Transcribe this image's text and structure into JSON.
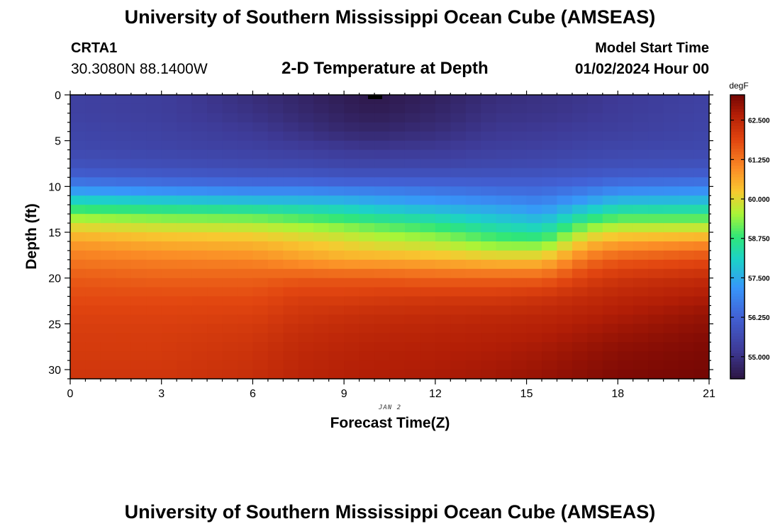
{
  "header": {
    "title": "University of Southern Mississippi Ocean Cube (AMSEAS)",
    "station_id": "CRTA1",
    "coordinates": "30.3080N  88.1400W",
    "plot_title": "2-D Temperature at Depth",
    "model_start_label": "Model Start Time",
    "model_start_value": "01/02/2024 Hour 00"
  },
  "footer": {
    "title": "University of Southern Mississippi Ocean Cube (AMSEAS)"
  },
  "chart_data": {
    "type": "heatmap",
    "title": "2-D Temperature at Depth",
    "xlabel": "Forecast Time(Z)",
    "ylabel": "Depth (ft)",
    "date_label": "JAN 2",
    "x_ticks": [
      0,
      3,
      6,
      9,
      12,
      15,
      18,
      21
    ],
    "y_ticks": [
      0,
      5,
      10,
      15,
      20,
      25,
      30
    ],
    "xlim": [
      0,
      21
    ],
    "ylim": [
      0,
      31
    ],
    "units": "degF",
    "colorbar": {
      "label": "degF",
      "ticks": [
        55.0,
        56.25,
        57.5,
        58.75,
        60.0,
        61.25,
        62.5
      ],
      "tick_labels": [
        "55.000",
        "56.250",
        "57.500",
        "58.750",
        "60.000",
        "61.250",
        "62.500"
      ],
      "range": [
        54.3,
        63.3
      ]
    },
    "x_hours": [
      0,
      3,
      6,
      7.5,
      9,
      10,
      12,
      14,
      15.5,
      17,
      18,
      21
    ],
    "depth_ft": [
      0,
      2,
      4,
      6,
      8,
      9,
      10,
      11,
      12,
      13,
      14,
      15,
      16,
      17,
      18,
      19,
      20,
      22,
      24,
      26,
      28,
      30,
      31
    ],
    "temperature_profiles": [
      {
        "hour": 0,
        "values": [
          55.4,
          55.4,
          55.5,
          55.6,
          55.9,
          56.3,
          56.9,
          57.7,
          58.5,
          59.2,
          59.8,
          60.3,
          60.7,
          61.0,
          61.2,
          61.4,
          61.6,
          61.8,
          61.95,
          62.05,
          62.1,
          62.15,
          62.2
        ]
      },
      {
        "hour": 3,
        "values": [
          55.3,
          55.3,
          55.4,
          55.5,
          55.8,
          56.2,
          56.7,
          57.5,
          58.3,
          59.0,
          59.6,
          60.1,
          60.5,
          60.8,
          61.1,
          61.3,
          61.5,
          61.8,
          61.95,
          62.05,
          62.1,
          62.15,
          62.2
        ]
      },
      {
        "hour": 6,
        "values": [
          54.9,
          55.0,
          55.2,
          55.4,
          55.7,
          56.1,
          56.6,
          57.3,
          58.1,
          58.9,
          59.5,
          60.0,
          60.4,
          60.7,
          61.0,
          61.3,
          61.5,
          61.8,
          62.0,
          62.15,
          62.25,
          62.3,
          62.35
        ]
      },
      {
        "hour": 7.5,
        "values": [
          54.7,
          54.8,
          55.0,
          55.3,
          55.7,
          56.1,
          56.6,
          57.3,
          58.0,
          58.7,
          59.3,
          59.8,
          60.2,
          60.5,
          60.8,
          61.2,
          61.6,
          62.0,
          62.2,
          62.35,
          62.45,
          62.5,
          62.55
        ]
      },
      {
        "hour": 9,
        "values": [
          54.5,
          54.6,
          54.8,
          55.2,
          55.6,
          56.0,
          56.5,
          57.2,
          57.9,
          58.5,
          59.1,
          59.6,
          60.0,
          60.3,
          60.6,
          61.1,
          61.6,
          62.0,
          62.3,
          62.45,
          62.55,
          62.6,
          62.65
        ]
      },
      {
        "hour": 10,
        "values": [
          54.4,
          54.5,
          54.75,
          55.15,
          55.6,
          56.0,
          56.5,
          57.1,
          57.7,
          58.3,
          58.9,
          59.4,
          59.8,
          60.2,
          60.6,
          61.1,
          61.6,
          62.05,
          62.35,
          62.5,
          62.6,
          62.65,
          62.7
        ]
      },
      {
        "hour": 12,
        "values": [
          54.6,
          54.7,
          54.9,
          55.2,
          55.6,
          56.0,
          56.4,
          56.9,
          57.4,
          58.0,
          58.6,
          59.1,
          59.6,
          60.0,
          60.5,
          61.0,
          61.5,
          62.1,
          62.4,
          62.55,
          62.65,
          62.7,
          62.75
        ]
      },
      {
        "hour": 14,
        "values": [
          54.9,
          55.0,
          55.15,
          55.35,
          55.65,
          56.0,
          56.3,
          56.7,
          57.2,
          57.7,
          58.1,
          58.6,
          59.1,
          59.7,
          60.3,
          60.9,
          61.5,
          62.1,
          62.45,
          62.6,
          62.7,
          62.8,
          62.85
        ]
      },
      {
        "hour": 15.5,
        "values": [
          55.0,
          55.05,
          55.2,
          55.4,
          55.7,
          56.0,
          56.3,
          56.6,
          57.0,
          57.4,
          57.9,
          58.4,
          59.0,
          59.7,
          60.3,
          60.9,
          61.5,
          62.2,
          62.5,
          62.65,
          62.8,
          62.9,
          62.95
        ]
      },
      {
        "hour": 17,
        "values": [
          55.1,
          55.15,
          55.3,
          55.5,
          55.8,
          56.1,
          56.5,
          57.0,
          57.6,
          58.3,
          59.0,
          59.7,
          60.3,
          60.8,
          61.3,
          61.7,
          62.0,
          62.4,
          62.6,
          62.8,
          62.95,
          63.05,
          63.1
        ]
      },
      {
        "hour": 18,
        "values": [
          55.2,
          55.25,
          55.35,
          55.55,
          55.85,
          56.2,
          56.7,
          57.3,
          58.0,
          58.7,
          59.4,
          60.0,
          60.6,
          61.1,
          61.6,
          61.9,
          62.2,
          62.5,
          62.7,
          62.9,
          63.05,
          63.15,
          63.2
        ]
      },
      {
        "hour": 21,
        "values": [
          55.4,
          55.45,
          55.5,
          55.6,
          55.9,
          56.3,
          56.8,
          57.4,
          58.0,
          58.7,
          59.4,
          60.1,
          60.8,
          61.4,
          61.8,
          62.1,
          62.4,
          62.7,
          62.95,
          63.1,
          63.2,
          63.25,
          63.3
        ]
      }
    ]
  }
}
